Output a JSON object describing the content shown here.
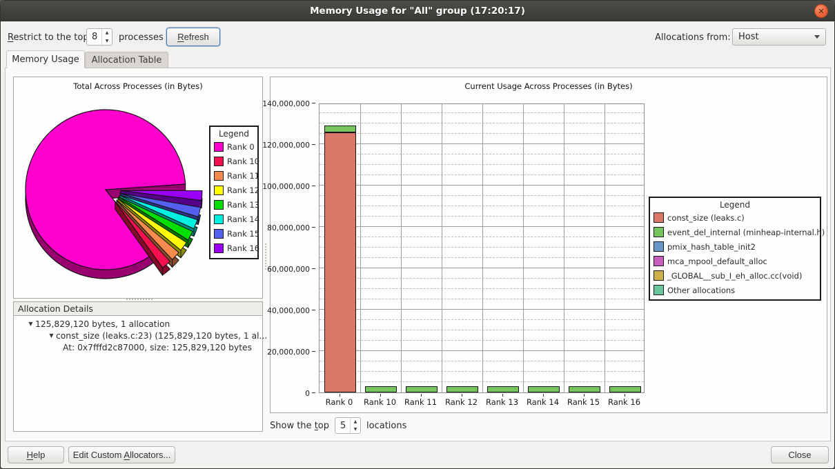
{
  "window": {
    "title": "Memory Usage for \"All\" group (17:20:17)",
    "close_glyph": "✕"
  },
  "toolbar": {
    "restrict": {
      "u": "R",
      "rest": "estrict to the top"
    },
    "top_processes_value": "8",
    "processes_label": "processes",
    "refresh": {
      "u": "R",
      "rest": "efresh"
    },
    "allocations_from_label": "Allocations from:",
    "allocations_from_value": "Host"
  },
  "tabs": {
    "memory_usage": "Memory Usage",
    "allocation_table": "Allocation Table"
  },
  "pie_panel": {
    "title": "Total Across Processes (in Bytes)",
    "legend_title": "Legend"
  },
  "details": {
    "header": "Allocation Details",
    "rows": [
      {
        "depth": 0,
        "expander": true,
        "text": "125,829,120 bytes, 1 allocation"
      },
      {
        "depth": 1,
        "expander": true,
        "text": "const_size (leaks.c:23) (125,829,120 bytes, 1 al..."
      },
      {
        "depth": 2,
        "expander": false,
        "text": "At: 0x7fffd2c87000, size: 125,829,120 bytes"
      }
    ]
  },
  "bar_panel": {
    "title": "Current Usage Across Processes (in Bytes)",
    "legend_title": "Legend"
  },
  "show_top": {
    "pre": "Show the ",
    "u": "t",
    "rest": "op",
    "value": "5",
    "suffix": "locations"
  },
  "footer": {
    "help": {
      "u": "H",
      "rest": "elp"
    },
    "edit": {
      "pre": "Edit Custom ",
      "u": "A",
      "rest": "llocators..."
    },
    "close_label": "Close"
  },
  "chart_data": [
    {
      "type": "pie",
      "title": "Total Across Processes (in Bytes)",
      "legend_position": "right",
      "unit": "bytes",
      "slices": [
        {
          "label": "Rank 0",
          "value": 129200000,
          "color": "#FF00CC"
        },
        {
          "label": "Rank 10",
          "value": 3000000,
          "color": "#F2114E"
        },
        {
          "label": "Rank 11",
          "value": 3000000,
          "color": "#F78A4D"
        },
        {
          "label": "Rank 12",
          "value": 3000000,
          "color": "#FFFF00"
        },
        {
          "label": "Rank 13",
          "value": 3000000,
          "color": "#00DD00"
        },
        {
          "label": "Rank 14",
          "value": 3000000,
          "color": "#00F0E0"
        },
        {
          "label": "Rank 15",
          "value": 3000000,
          "color": "#5560EE"
        },
        {
          "label": "Rank 16",
          "value": 3000000,
          "color": "#9900F5"
        }
      ],
      "note": "Rank 10-16 slices drawn exploded from the pie"
    },
    {
      "type": "bar",
      "stacked": true,
      "title": "Current Usage Across Processes (in Bytes)",
      "categories": [
        "Rank 0",
        "Rank 10",
        "Rank 11",
        "Rank 12",
        "Rank 13",
        "Rank 14",
        "Rank 15",
        "Rank 16"
      ],
      "series": [
        {
          "name": "const_size (leaks.c)",
          "color": "#D97868",
          "values": [
            125829120,
            0,
            0,
            0,
            0,
            0,
            0,
            0
          ]
        },
        {
          "name": "event_del_internal (minheap-internal.h)",
          "color": "#76C45E",
          "values": [
            3400000,
            3000000,
            3000000,
            3000000,
            3000000,
            3000000,
            3000000,
            3000000
          ]
        },
        {
          "name": "pmix_hash_table_init2",
          "color": "#6796C7",
          "values": [
            0,
            0,
            0,
            0,
            0,
            0,
            0,
            0
          ]
        },
        {
          "name": "mca_mpool_default_alloc",
          "color": "#C75FC0",
          "values": [
            0,
            0,
            0,
            0,
            0,
            0,
            0,
            0
          ]
        },
        {
          "name": "_GLOBAL__sub_I_eh_alloc.cc(void)",
          "color": "#CCB04C",
          "values": [
            0,
            0,
            0,
            0,
            0,
            0,
            0,
            0
          ]
        },
        {
          "name": "Other allocations",
          "color": "#68C69A",
          "values": [
            0,
            0,
            0,
            0,
            0,
            0,
            0,
            0
          ]
        }
      ],
      "xlabel": "",
      "ylabel": "",
      "ylim": [
        0,
        140000000
      ],
      "ytick_step": 20000000,
      "minor_tick_step": 5000000,
      "grid": true,
      "legend_position": "right"
    }
  ]
}
